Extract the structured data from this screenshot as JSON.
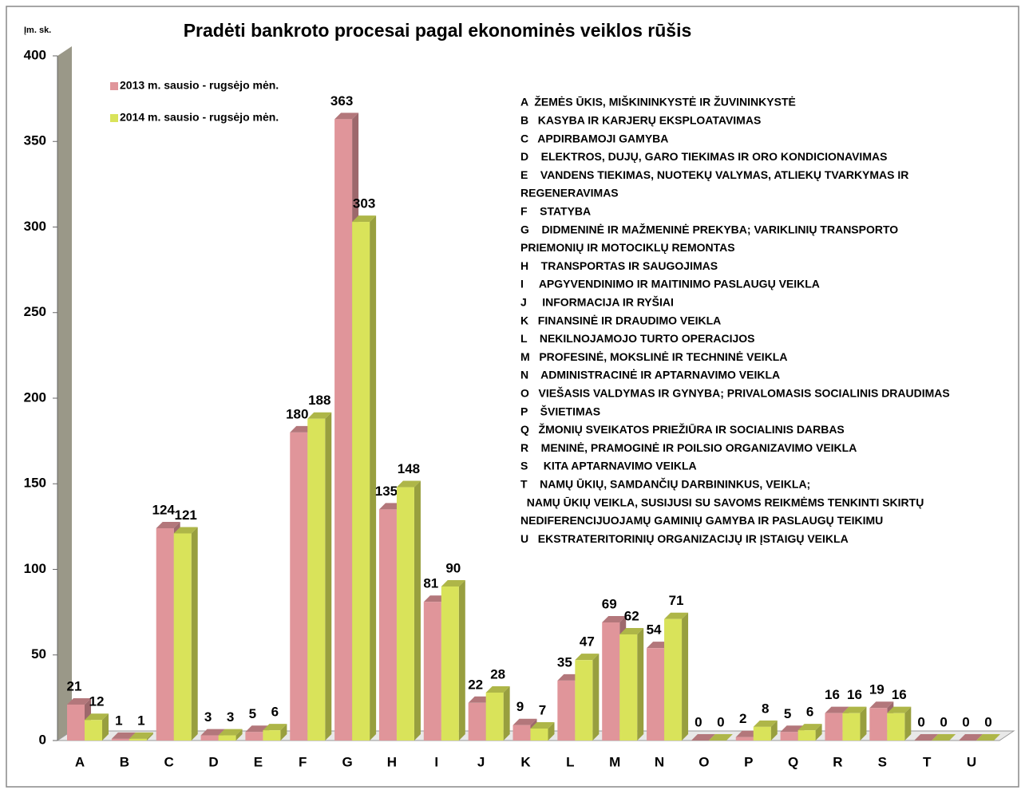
{
  "chart_data": {
    "type": "bar3d",
    "title": "Pradėti bankroto procesai pagal ekonominės veiklos rūšis",
    "y_label": "Įm. sk.",
    "categories": [
      "A",
      "B",
      "C",
      "D",
      "E",
      "F",
      "G",
      "H",
      "I",
      "J",
      "K",
      "L",
      "M",
      "N",
      "O",
      "P",
      "Q",
      "R",
      "S",
      "T",
      "U"
    ],
    "series": [
      {
        "name": "2013 m. sausio - rugsėjo mėn.",
        "color": "#e0959a",
        "values": [
          21,
          1,
          124,
          3,
          5,
          180,
          363,
          135,
          81,
          22,
          9,
          35,
          69,
          54,
          0,
          2,
          5,
          16,
          19,
          0,
          0
        ]
      },
      {
        "name": "2014 m. sausio - rugsėjo mėn.",
        "color": "#d9e35a",
        "values": [
          12,
          1,
          121,
          3,
          6,
          188,
          303,
          148,
          90,
          28,
          7,
          47,
          62,
          71,
          0,
          8,
          6,
          16,
          16,
          0,
          0
        ]
      }
    ],
    "ylim": [
      0,
      400
    ],
    "yticks": [
      0,
      50,
      100,
      150,
      200,
      250,
      300,
      350,
      400
    ],
    "annotations": [
      "A  ŽEMĖS ŪKIS, MIŠKININKYSTĖ IR ŽUVININKYSTĖ",
      "B   KASYBA IR KARJERŲ EKSPLOATAVIMAS",
      "C   APDIRBAMOJI GAMYBA",
      "D    ELEKTROS, DUJŲ, GARO TIEKIMAS IR ORO KONDICIONAVIMAS",
      "E    VANDENS TIEKIMAS, NUOTEKŲ VALYMAS, ATLIEKŲ TVARKYMAS IR",
      "REGENERAVIMAS",
      "F    STATYBA",
      "G    DIDMENINĖ IR MAŽMENINĖ PREKYBA; VARIKLINIŲ TRANSPORTO",
      "PRIEMONIŲ IR MOTOCIKLŲ REMONTAS",
      "H    TRANSPORTAS IR SAUGOJIMAS",
      "I     APGYVENDINIMO IR MAITINIMO PASLAUGŲ VEIKLA",
      "J     INFORMACIJA IR RYŠIAI",
      "K   FINANSINĖ IR DRAUDIMO VEIKLA",
      "L    NEKILNOJAMOJO TURTO OPERACIJOS",
      "M   PROFESINĖ, MOKSLINĖ IR TECHNINĖ VEIKLA",
      "N    ADMINISTRACINĖ IR APTARNAVIMO VEIKLA",
      "O   VIEŠASIS VALDYMAS IR GYNYBA; PRIVALOMASIS SOCIALINIS DRAUDIMAS",
      "P    ŠVIETIMAS",
      "Q   ŽMONIŲ SVEIKATOS PRIEŽIŪRA IR SOCIALINIS DARBAS",
      "R    MENINĖ, PRAMOGINĖ IR POILSIO ORGANIZAVIMO VEIKLA",
      "S     KITA APTARNAVIMO VEIKLA",
      "T    NAMŲ ŪKIŲ, SAMDANČIŲ DARBININKUS, VEIKLA;",
      "  NAMŲ ŪKIŲ VEIKLA, SUSIJUSI SU SAVOMS REIKMĖMS TENKINTI SKIRTŲ",
      "NEDIFERENCIJUOJAMŲ GAMINIŲ GAMYBA IR PASLAUGŲ TEIKIMU",
      "U   EKSTRATERITORINIŲ ORGANIZACIJŲ IR ĮSTAIGŲ VEIKLA"
    ]
  }
}
